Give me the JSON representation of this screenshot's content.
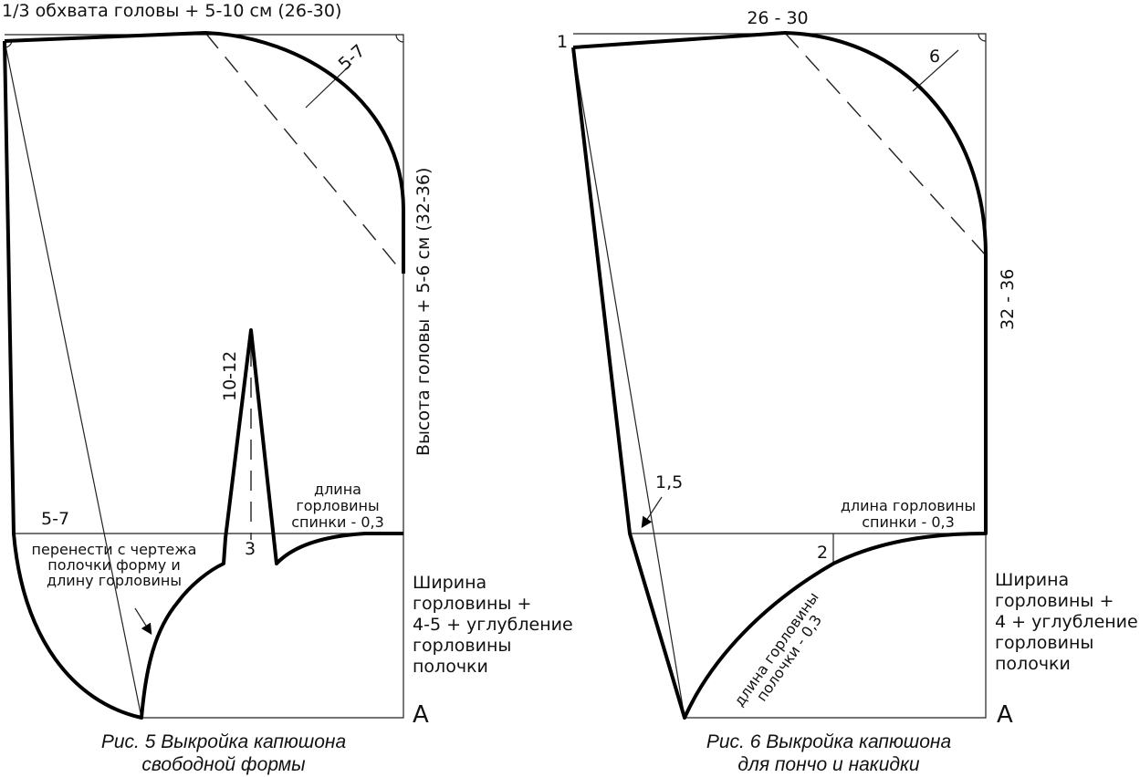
{
  "figure5": {
    "top_label": "1/3 обхвата головы + 5-10 см (26-30)",
    "diagonal_label": "5-7",
    "height_label": "Высота головы + 5-6 см (32-36)",
    "dart_label": "10-12",
    "left_label": "5-7",
    "point_label": "3",
    "back_neck_label": [
      "длина",
      "горловины",
      "спинки - 0,3"
    ],
    "transfer_label": [
      "перенести с чертежа",
      "полочки форму и",
      "длину горловины"
    ],
    "width_label": [
      "Ширина",
      "горловины +",
      "4-5 + углубление",
      "горловины",
      "полочки"
    ],
    "corner_label": "A",
    "caption": [
      "Рис. 5 Выкройка капюшона",
      "свободной формы"
    ]
  },
  "figure6": {
    "point1": "1",
    "top_label": "26 - 30",
    "diagonal_label": "6",
    "height_label": "32 - 36",
    "offset_label": "1,5",
    "back_neck_label": [
      "длина горловины",
      "спинки - 0,3"
    ],
    "point2": "2",
    "front_neck_label": [
      "длина горловины",
      "полочки - 0,3"
    ],
    "width_label": [
      "Ширина",
      "горловины +",
      "4 + углубление",
      "горловины",
      "полочки"
    ],
    "corner_label": "A",
    "caption": [
      "Рис. 6 Выкройка капюшона",
      "для пончо и накидки"
    ]
  }
}
